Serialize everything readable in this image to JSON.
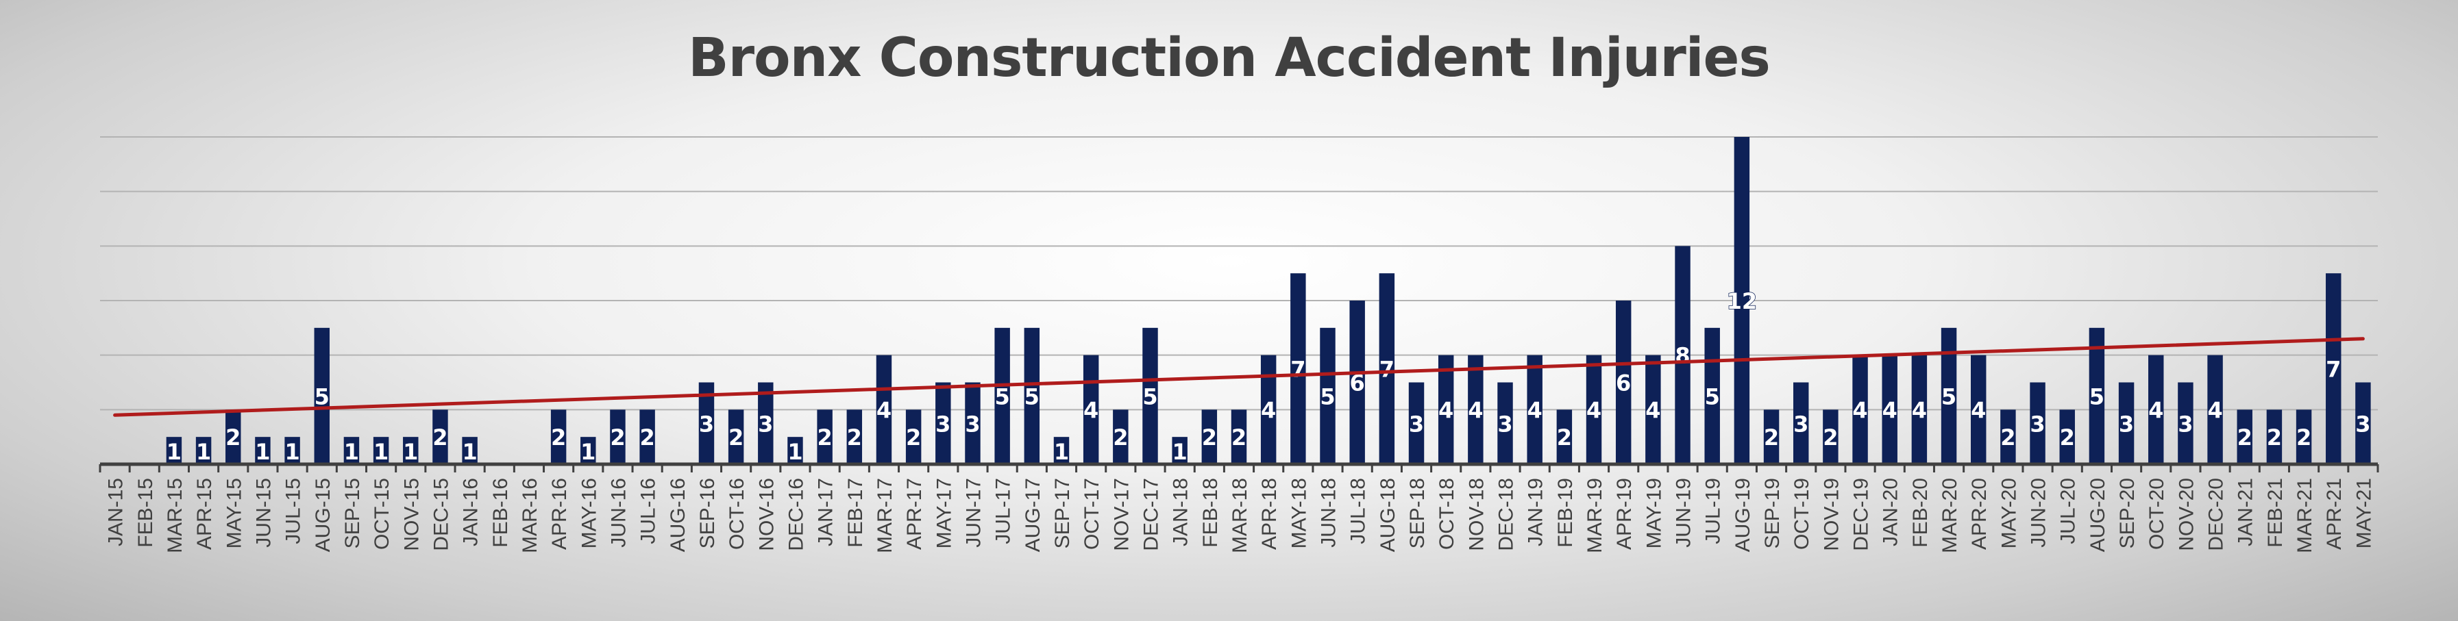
{
  "chart_data": {
    "type": "bar",
    "title": "Bronx Construction Accident Injuries",
    "categories": [
      "JAN-15",
      "FEB-15",
      "MAR-15",
      "APR-15",
      "MAY-15",
      "JUN-15",
      "JUL-15",
      "AUG-15",
      "SEP-15",
      "OCT-15",
      "NOV-15",
      "DEC-15",
      "JAN-16",
      "FEB-16",
      "MAR-16",
      "APR-16",
      "MAY-16",
      "JUN-16",
      "JUL-16",
      "AUG-16",
      "SEP-16",
      "OCT-16",
      "NOV-16",
      "DEC-16",
      "JAN-17",
      "FEB-17",
      "MAR-17",
      "APR-17",
      "MAY-17",
      "JUN-17",
      "JUL-17",
      "AUG-17",
      "SEP-17",
      "OCT-17",
      "NOV-17",
      "DEC-17",
      "JAN-18",
      "FEB-18",
      "MAR-18",
      "APR-18",
      "MAY-18",
      "JUN-18",
      "JUL-18",
      "AUG-18",
      "SEP-18",
      "OCT-18",
      "NOV-18",
      "DEC-18",
      "JAN-19",
      "FEB-19",
      "MAR-19",
      "APR-19",
      "MAY-19",
      "JUN-19",
      "JUL-19",
      "AUG-19",
      "SEP-19",
      "OCT-19",
      "NOV-19",
      "DEC-19",
      "JAN-20",
      "FEB-20",
      "MAR-20",
      "APR-20",
      "MAY-20",
      "JUN-20",
      "JUL-20",
      "AUG-20",
      "SEP-20",
      "OCT-20",
      "NOV-20",
      "DEC-20",
      "JAN-21",
      "FEB-21",
      "MAR-21",
      "APR-21",
      "MAY-21"
    ],
    "values": [
      0,
      0,
      1,
      1,
      2,
      1,
      1,
      5,
      1,
      1,
      1,
      2,
      1,
      0,
      0,
      2,
      1,
      2,
      2,
      0,
      3,
      2,
      3,
      1,
      2,
      2,
      4,
      2,
      3,
      3,
      5,
      5,
      1,
      4,
      2,
      5,
      1,
      2,
      2,
      4,
      7,
      5,
      6,
      7,
      3,
      4,
      4,
      3,
      4,
      2,
      4,
      6,
      4,
      8,
      5,
      12,
      2,
      3,
      2,
      4,
      4,
      4,
      5,
      4,
      2,
      3,
      2,
      5,
      3,
      4,
      3,
      4,
      2,
      2,
      2,
      7,
      3
    ],
    "trendline": {
      "start": 1.8,
      "end": 4.6
    },
    "ylim": [
      0,
      12
    ],
    "grid": true,
    "xlabel": "",
    "ylabel": "",
    "colors": {
      "bar": "#0e2157",
      "trend": "#b01c1c",
      "grid": "#b3b3b3",
      "axis": "#404040",
      "label": "#ffffff",
      "tick": "#404040"
    }
  }
}
